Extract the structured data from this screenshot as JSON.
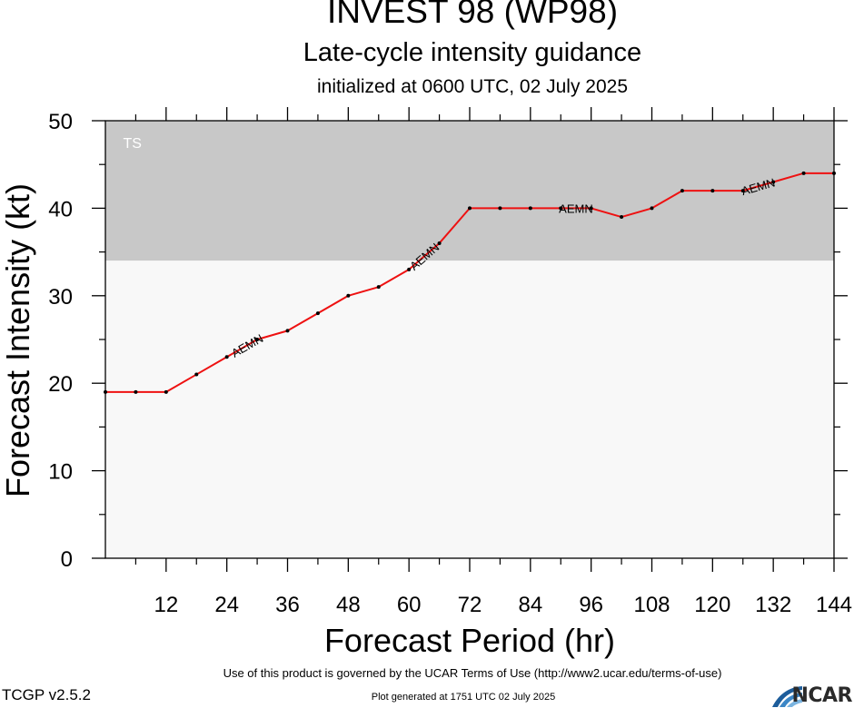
{
  "title": "INVEST 98 (WP98)",
  "subtitle": "Late-cycle intensity guidance",
  "init_text": "initialized at 0600 UTC, 02 July 2025",
  "footer": {
    "terms": "Use of this product is governed by the UCAR Terms of Use (http://www2.ucar.edu/terms-of-use)",
    "version": "TCGP v2.5.2",
    "generated": "Plot generated at 1751 UTC   02 July 2025",
    "logo_text": "NCAR"
  },
  "chart_data": {
    "type": "line",
    "title": "INVEST 98 (WP98)",
    "xlabel": "Forecast Period (hr)",
    "ylabel": "Forecast Intensity (kt)",
    "xlim": [
      0,
      144
    ],
    "ylim": [
      0,
      50
    ],
    "x_ticks": [
      12,
      24,
      36,
      48,
      60,
      72,
      84,
      96,
      108,
      120,
      132,
      144
    ],
    "y_ticks": [
      0,
      10,
      20,
      30,
      40,
      50
    ],
    "grid": false,
    "bands": [
      {
        "label": "TS",
        "from": 34,
        "to": 50,
        "color": "#c8c8c8"
      },
      {
        "label": "",
        "from": 0,
        "to": 34,
        "color": "#f8f8f8"
      }
    ],
    "series": [
      {
        "name": "AEMN",
        "color": "#ee1111",
        "x": [
          0,
          6,
          12,
          18,
          24,
          30,
          36,
          42,
          48,
          54,
          60,
          66,
          72,
          78,
          84,
          90,
          96,
          102,
          108,
          114,
          120,
          126,
          132,
          138,
          144
        ],
        "y": [
          19,
          19,
          19,
          21,
          23,
          25,
          26,
          28,
          30,
          31,
          33,
          36,
          40,
          40,
          40,
          40,
          40,
          39,
          40,
          42,
          42,
          42,
          43,
          44,
          44
        ],
        "label_positions": [
          28,
          63,
          93,
          129
        ]
      }
    ]
  }
}
